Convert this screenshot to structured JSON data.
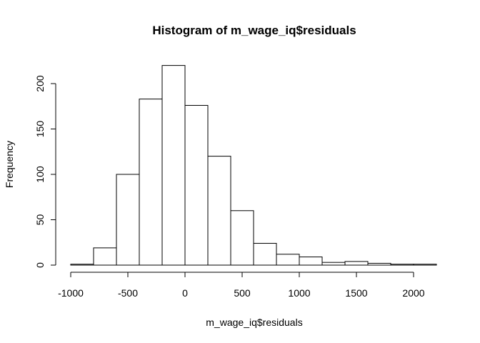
{
  "chart_data": {
    "type": "bar",
    "title": "Histogram of m_wage_iq$residuals",
    "xlabel": "m_wage_iq$residuals",
    "ylabel": "Frequency",
    "bin_width": 200,
    "bins": [
      {
        "start": -1000,
        "end": -800,
        "count": 1
      },
      {
        "start": -800,
        "end": -600,
        "count": 19
      },
      {
        "start": -600,
        "end": -400,
        "count": 100
      },
      {
        "start": -400,
        "end": -200,
        "count": 183
      },
      {
        "start": -200,
        "end": 0,
        "count": 220
      },
      {
        "start": 0,
        "end": 200,
        "count": 176
      },
      {
        "start": 200,
        "end": 400,
        "count": 120
      },
      {
        "start": 400,
        "end": 600,
        "count": 60
      },
      {
        "start": 600,
        "end": 800,
        "count": 24
      },
      {
        "start": 800,
        "end": 1000,
        "count": 12
      },
      {
        "start": 1000,
        "end": 1200,
        "count": 9
      },
      {
        "start": 1200,
        "end": 1400,
        "count": 3
      },
      {
        "start": 1400,
        "end": 1600,
        "count": 4
      },
      {
        "start": 1600,
        "end": 1800,
        "count": 2
      },
      {
        "start": 1800,
        "end": 2000,
        "count": 1
      },
      {
        "start": 2000,
        "end": 2200,
        "count": 1
      }
    ],
    "xticks": [
      -1000,
      -500,
      0,
      500,
      1000,
      1500,
      2000
    ],
    "xtick_labels": [
      "-1000",
      "-500",
      "0",
      "500",
      "1000",
      "1500",
      "2000"
    ],
    "yticks": [
      0,
      50,
      100,
      150,
      200
    ],
    "ytick_labels": [
      "0",
      "50",
      "100",
      "150",
      "200"
    ],
    "xlim": [
      -1000,
      2200
    ],
    "ylim": [
      0,
      220
    ],
    "grid": false,
    "colors": {
      "bar_fill": "#ffffff",
      "bar_stroke": "#000000"
    }
  }
}
